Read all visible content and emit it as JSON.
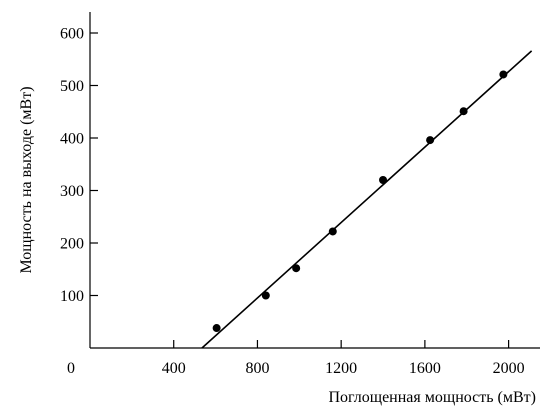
{
  "chart_data": {
    "type": "scatter",
    "xlabel": "Поглощенная мощность (мВт)",
    "ylabel": "Мощность на выходе (мВт)",
    "xlim": [
      0,
      2150
    ],
    "ylim": [
      0,
      640
    ],
    "x_ticks": [
      0,
      400,
      800,
      1200,
      1600,
      2000
    ],
    "x_tick_labels": [
      "0",
      "400",
      "800",
      "1200",
      "1600",
      "2000"
    ],
    "y_ticks": [
      100,
      200,
      300,
      400,
      500,
      600
    ],
    "y_tick_labels": [
      "100",
      "200",
      "300",
      "400",
      "500",
      "600"
    ],
    "grid": false,
    "series": [
      {
        "points": [
          {
            "x": 605,
            "y": 38
          },
          {
            "x": 840,
            "y": 100
          },
          {
            "x": 985,
            "y": 152
          },
          {
            "x": 1160,
            "y": 222
          },
          {
            "x": 1400,
            "y": 320
          },
          {
            "x": 1625,
            "y": 396
          },
          {
            "x": 1785,
            "y": 451
          },
          {
            "x": 1975,
            "y": 521
          }
        ]
      }
    ],
    "fit_line": {
      "x_start": 535,
      "y_start": 0,
      "x_end": 2110,
      "y_end": 566
    }
  }
}
